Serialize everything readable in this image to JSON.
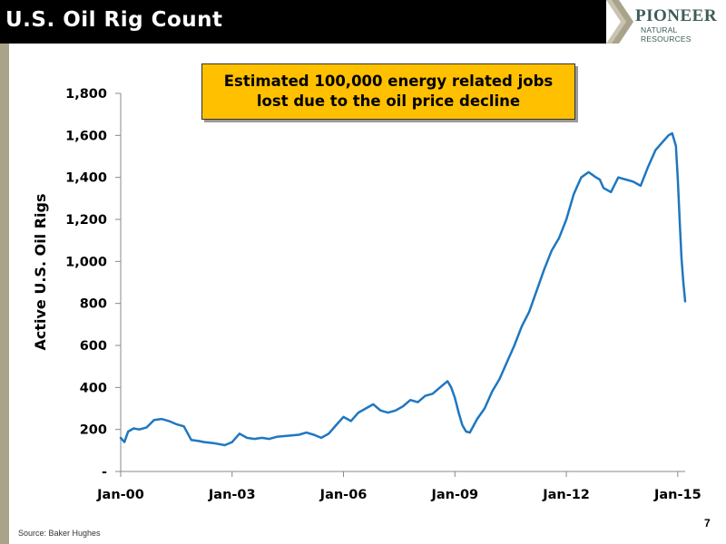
{
  "slide": {
    "title": "U.S. Oil Rig Count",
    "logo_word": "PIONEER",
    "logo_sub": "NATURAL RESOURCES",
    "source": "Source: Baker Hughes",
    "page_number": "7",
    "callout_line1": "Estimated 100,000 energy related jobs",
    "callout_line2": "lost due to the oil price decline",
    "colors": {
      "header": "#000000",
      "accent_bar": "#a9a38b",
      "callout": "#ffc000",
      "line": "#1f77c0"
    }
  },
  "chart_data": {
    "type": "line",
    "title": "",
    "xlabel": "",
    "ylabel": "Active U.S. Oil Rigs",
    "ylim": [
      0,
      1800
    ],
    "xlim": [
      2000.0,
      2015.2
    ],
    "y_ticks": [
      {
        "value": 0,
        "label": "-"
      },
      {
        "value": 200,
        "label": "200"
      },
      {
        "value": 400,
        "label": "400"
      },
      {
        "value": 600,
        "label": "600"
      },
      {
        "value": 800,
        "label": "800"
      },
      {
        "value": 1000,
        "label": "1,000"
      },
      {
        "value": 1200,
        "label": "1,200"
      },
      {
        "value": 1400,
        "label": "1,400"
      },
      {
        "value": 1600,
        "label": "1,600"
      },
      {
        "value": 1800,
        "label": "1,800"
      }
    ],
    "x_ticks": [
      {
        "value": 2000,
        "label": "Jan-00"
      },
      {
        "value": 2003,
        "label": "Jan-03"
      },
      {
        "value": 2006,
        "label": "Jan-06"
      },
      {
        "value": 2009,
        "label": "Jan-09"
      },
      {
        "value": 2012,
        "label": "Jan-12"
      },
      {
        "value": 2015,
        "label": "Jan-15"
      }
    ],
    "grid": false,
    "legend": "none",
    "series": [
      {
        "color": "#1f77c0",
        "x": [
          2000.0,
          2000.1,
          2000.2,
          2000.35,
          2000.5,
          2000.7,
          2000.9,
          2001.1,
          2001.3,
          2001.5,
          2001.7,
          2001.9,
          2002.1,
          2002.25,
          2002.5,
          2002.8,
          2003.0,
          2003.2,
          2003.4,
          2003.6,
          2003.8,
          2004.0,
          2004.2,
          2004.5,
          2004.8,
          2005.0,
          2005.2,
          2005.4,
          2005.6,
          2005.8,
          2006.0,
          2006.2,
          2006.4,
          2006.6,
          2006.8,
          2007.0,
          2007.2,
          2007.4,
          2007.6,
          2007.8,
          2008.0,
          2008.2,
          2008.4,
          2008.6,
          2008.8,
          2008.9,
          2009.0,
          2009.1,
          2009.2,
          2009.3,
          2009.4,
          2009.6,
          2009.8,
          2010.0,
          2010.2,
          2010.4,
          2010.6,
          2010.8,
          2011.0,
          2011.2,
          2011.4,
          2011.6,
          2011.8,
          2012.0,
          2012.2,
          2012.4,
          2012.6,
          2012.8,
          2012.9,
          2013.0,
          2013.2,
          2013.4,
          2013.6,
          2013.8,
          2014.0,
          2014.2,
          2014.4,
          2014.6,
          2014.75,
          2014.85,
          2014.95,
          2015.0,
          2015.05,
          2015.1,
          2015.15,
          2015.2
        ],
        "values": [
          160,
          140,
          190,
          205,
          200,
          210,
          245,
          250,
          240,
          225,
          215,
          150,
          145,
          140,
          135,
          125,
          140,
          180,
          160,
          155,
          160,
          155,
          165,
          170,
          175,
          185,
          175,
          160,
          180,
          220,
          260,
          240,
          280,
          300,
          320,
          290,
          280,
          290,
          310,
          340,
          330,
          360,
          370,
          400,
          430,
          400,
          350,
          280,
          220,
          190,
          185,
          250,
          300,
          380,
          440,
          520,
          600,
          690,
          760,
          860,
          960,
          1050,
          1110,
          1200,
          1320,
          1400,
          1425,
          1400,
          1390,
          1350,
          1330,
          1400,
          1390,
          1380,
          1360,
          1450,
          1530,
          1570,
          1600,
          1610,
          1550,
          1400,
          1200,
          1020,
          900,
          810
        ]
      }
    ]
  }
}
